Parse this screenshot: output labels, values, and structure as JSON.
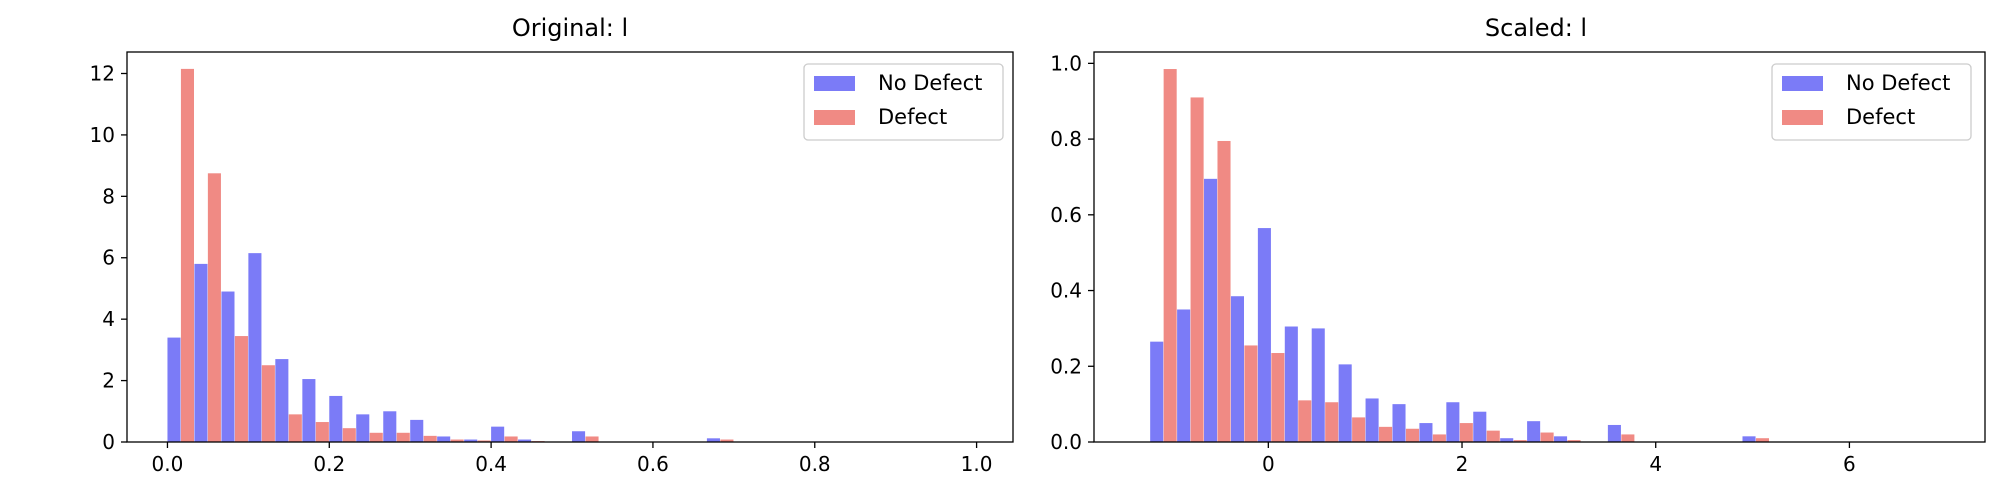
{
  "colors": {
    "no_defect": "#7b7bf7",
    "defect": "#f08a84",
    "axis": "#000000"
  },
  "chart_data": [
    {
      "type": "bar",
      "title": "Original: l",
      "xlabel": "",
      "ylabel": "",
      "xlim": [
        -0.05,
        1.045
      ],
      "ylim": [
        0,
        12.7
      ],
      "xticks": [
        "0.0",
        "0.2",
        "0.4",
        "0.6",
        "0.8",
        "1.0"
      ],
      "yticks": [
        "0",
        "2",
        "4",
        "6",
        "8",
        "10",
        "12"
      ],
      "bin_width": 0.0333,
      "grid": false,
      "legend_position": "top-right",
      "series": [
        {
          "name": "No Defect",
          "x": [
            0.0,
            0.0333,
            0.0667,
            0.1,
            0.1333,
            0.1667,
            0.2,
            0.2333,
            0.2667,
            0.3,
            0.3333,
            0.3667,
            0.4,
            0.4333,
            0.4667,
            0.5,
            0.5333,
            0.5667,
            0.6,
            0.6333,
            0.6667,
            0.7,
            0.7333,
            0.7667,
            0.8,
            0.8333,
            0.8667,
            0.9,
            0.9333,
            0.9667
          ],
          "values": [
            3.4,
            5.8,
            4.9,
            6.15,
            2.7,
            2.05,
            1.5,
            0.9,
            1.0,
            0.72,
            0.18,
            0.08,
            0.5,
            0.08,
            0,
            0.35,
            0,
            0,
            0,
            0,
            0.12,
            0,
            0,
            0,
            0,
            0,
            0,
            0,
            0,
            0
          ]
        },
        {
          "name": "Defect",
          "x": [
            0.0,
            0.0333,
            0.0667,
            0.1,
            0.1333,
            0.1667,
            0.2,
            0.2333,
            0.2667,
            0.3,
            0.3333,
            0.3667,
            0.4,
            0.4333,
            0.4667,
            0.5,
            0.5333,
            0.5667,
            0.6,
            0.6333,
            0.6667,
            0.7,
            0.7333,
            0.7667,
            0.8,
            0.8333,
            0.8667,
            0.9,
            0.9333,
            0.9667
          ],
          "values": [
            12.15,
            8.75,
            3.45,
            2.5,
            0.9,
            0.65,
            0.45,
            0.3,
            0.3,
            0.2,
            0.08,
            0.05,
            0.18,
            0.03,
            0,
            0.18,
            0,
            0,
            0,
            0,
            0.08,
            0,
            0,
            0,
            0,
            0,
            0,
            0,
            0,
            0
          ]
        }
      ]
    },
    {
      "type": "bar",
      "title": "Scaled: l",
      "xlabel": "",
      "ylabel": "",
      "xlim": [
        -1.8,
        7.4
      ],
      "ylim": [
        0,
        1.03
      ],
      "xticks": [
        "0",
        "2",
        "4",
        "6"
      ],
      "xtick_values": [
        0,
        2,
        4,
        6
      ],
      "yticks": [
        "0.0",
        "0.2",
        "0.4",
        "0.6",
        "0.8",
        "1.0"
      ],
      "bin_width": 0.278,
      "grid": false,
      "legend_position": "top-right",
      "series": [
        {
          "name": "No Defect",
          "x": [
            -1.22,
            -0.942,
            -0.664,
            -0.386,
            -0.108,
            0.17,
            0.448,
            0.726,
            1.004,
            1.282,
            1.56,
            1.838,
            2.116,
            2.394,
            2.672,
            2.95,
            3.228,
            3.506,
            3.784,
            4.062,
            4.34,
            4.618,
            4.896,
            5.174,
            5.452,
            5.73,
            6.008,
            6.286,
            6.564,
            6.842
          ],
          "values": [
            0.265,
            0.35,
            0.695,
            0.385,
            0.565,
            0.305,
            0.3,
            0.205,
            0.115,
            0.1,
            0.05,
            0.105,
            0.08,
            0.01,
            0.055,
            0.015,
            0,
            0.045,
            0,
            0,
            0,
            0,
            0.015,
            0,
            0,
            0,
            0,
            0,
            0,
            0
          ]
        },
        {
          "name": "Defect",
          "x": [
            -1.22,
            -0.942,
            -0.664,
            -0.386,
            -0.108,
            0.17,
            0.448,
            0.726,
            1.004,
            1.282,
            1.56,
            1.838,
            2.116,
            2.394,
            2.672,
            2.95,
            3.228,
            3.506,
            3.784,
            4.062,
            4.34,
            4.618,
            4.896,
            5.174,
            5.452,
            5.73,
            6.008,
            6.286,
            6.564,
            6.842
          ],
          "values": [
            0.985,
            0.91,
            0.795,
            0.255,
            0.235,
            0.11,
            0.105,
            0.065,
            0.04,
            0.035,
            0.02,
            0.05,
            0.03,
            0.005,
            0.025,
            0.005,
            0,
            0.02,
            0,
            0,
            0,
            0,
            0.01,
            0,
            0,
            0,
            0,
            0,
            0,
            0
          ]
        }
      ]
    }
  ]
}
